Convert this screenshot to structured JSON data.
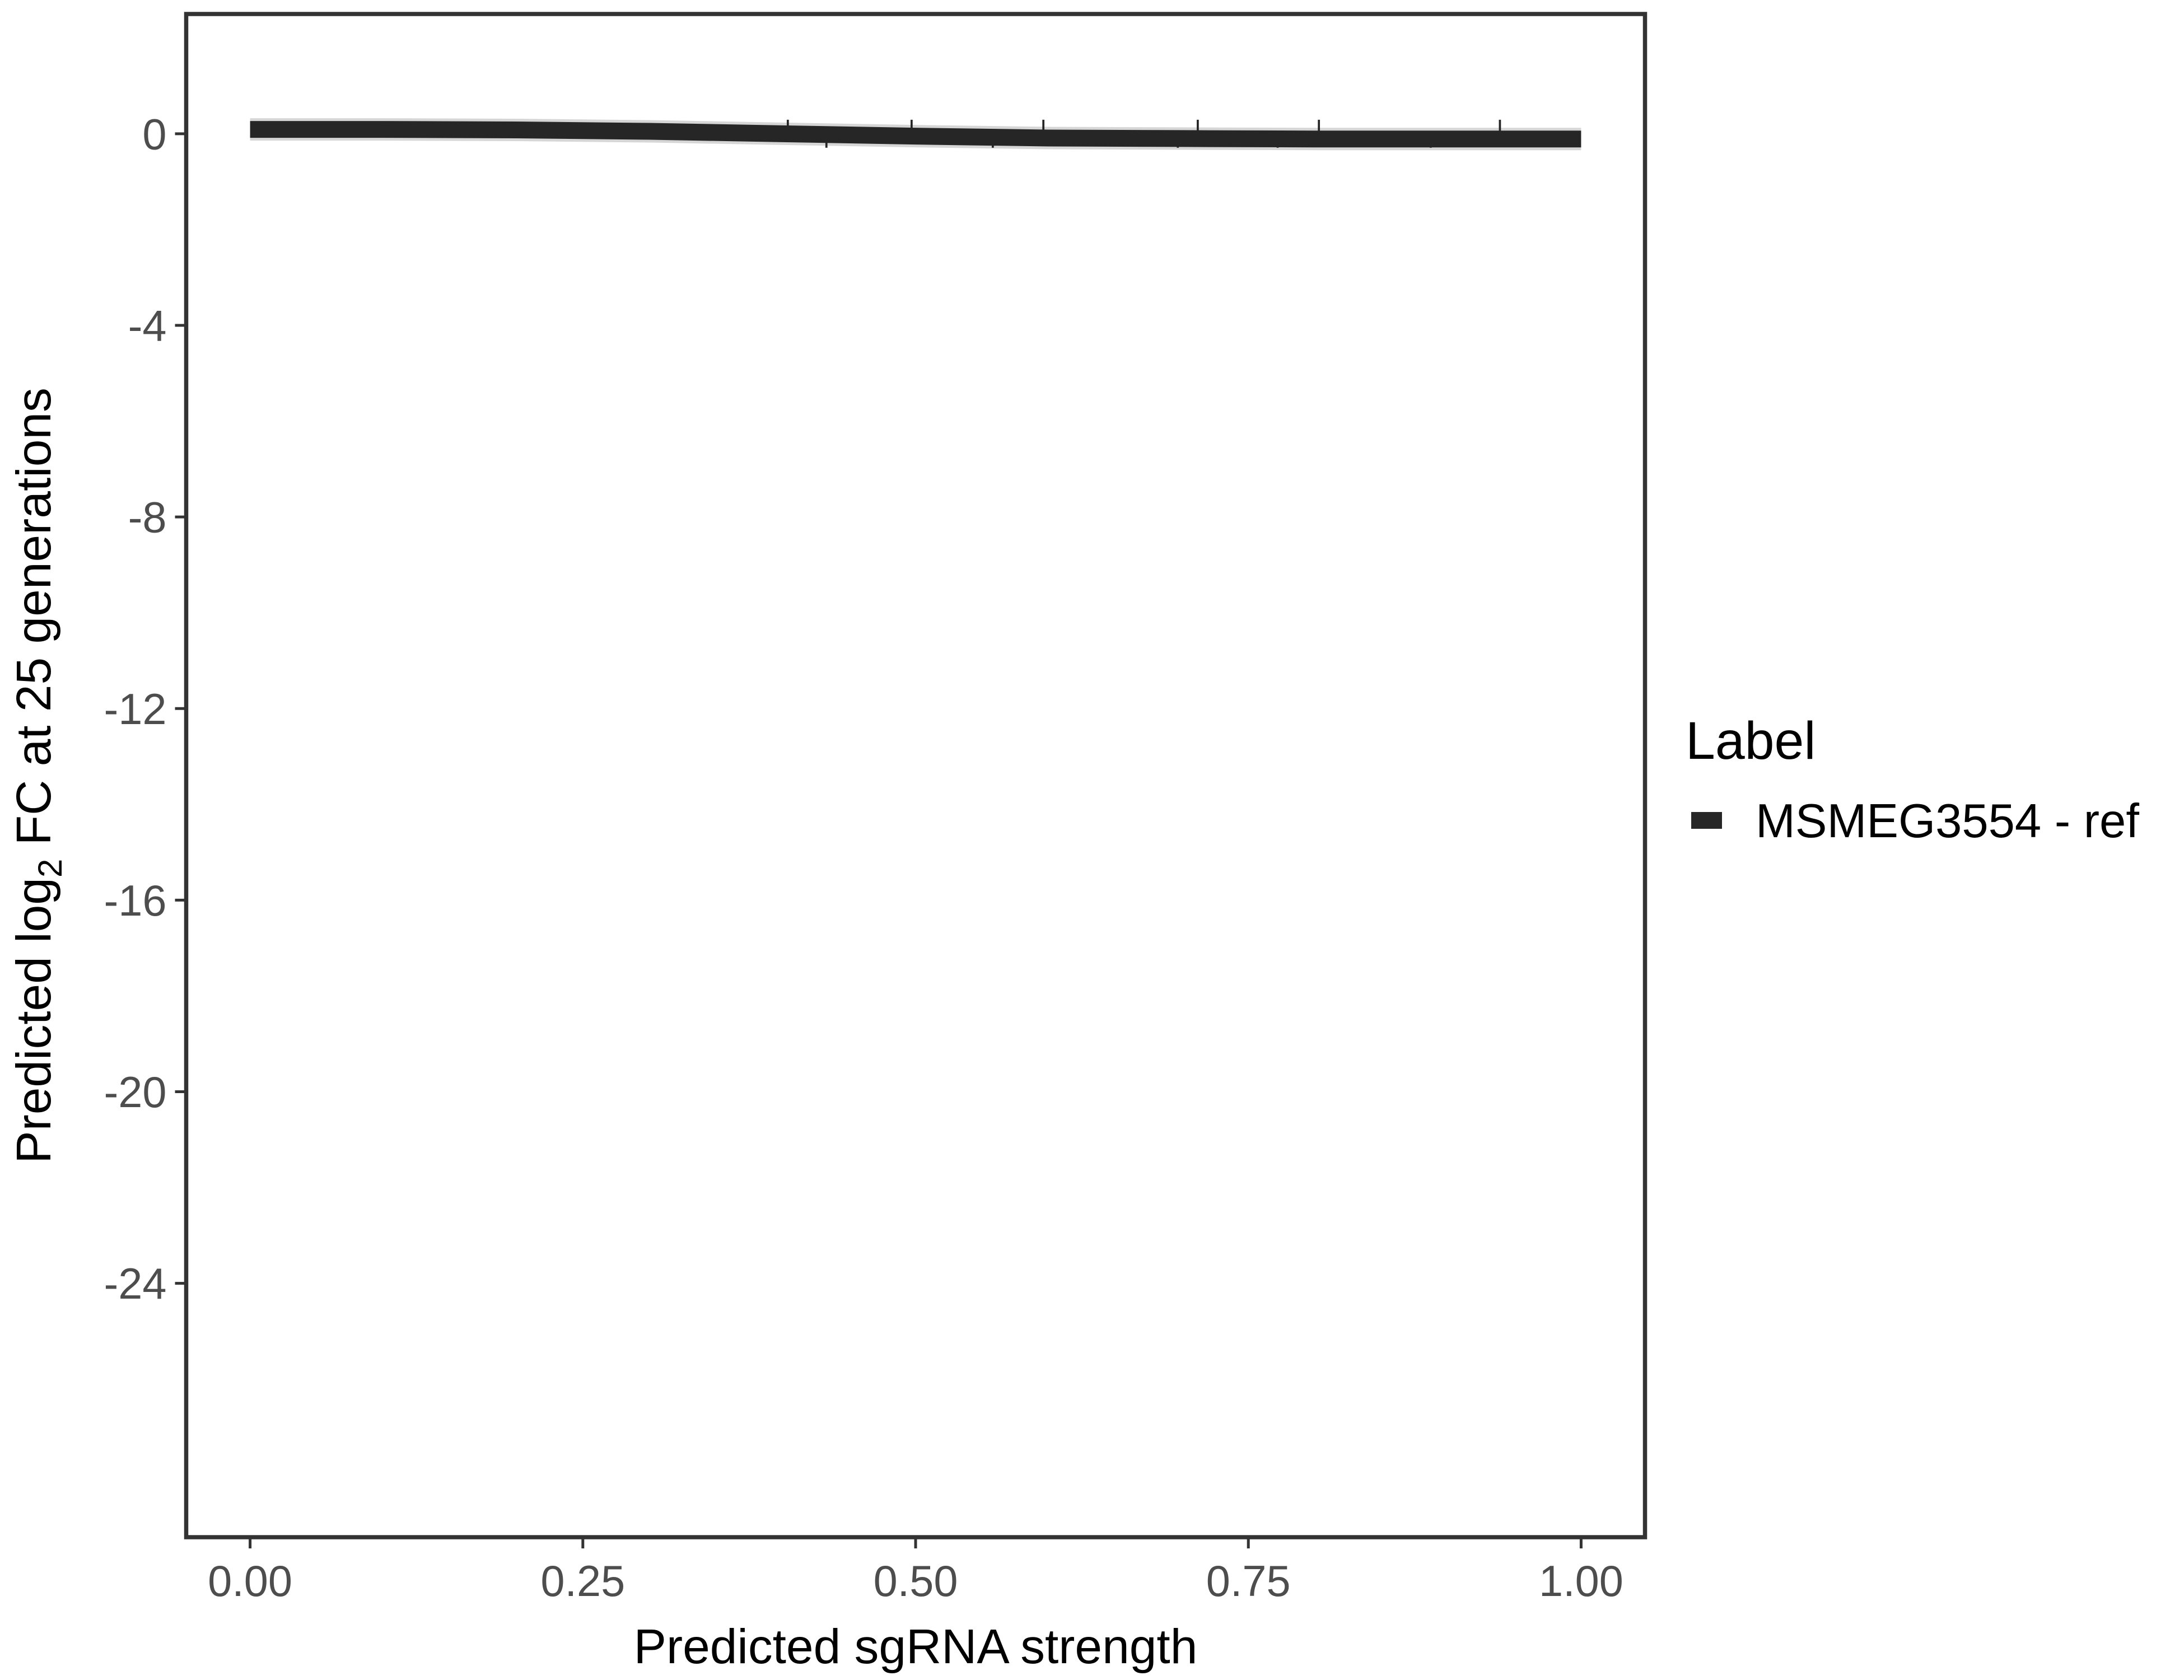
{
  "chart_data": {
    "type": "line",
    "title": "",
    "xlabel": "Predicted sgRNA strength",
    "ylabel_prefix": "Predicted  log",
    "ylabel_sub": "2",
    "ylabel_suffix": " FC at 25 generations",
    "xlim": [
      -0.048,
      1.048
    ],
    "ylim": [
      -29.3,
      2.5
    ],
    "xticks": [
      0,
      0.25,
      0.5,
      0.75,
      1
    ],
    "xtick_labels": [
      "0.00",
      "0.25",
      "0.50",
      "0.75",
      "1.00"
    ],
    "yticks": [
      0,
      -4,
      -8,
      -12,
      -16,
      -20,
      -24
    ],
    "ytick_labels": [
      "0",
      "-4",
      "-8",
      "-12",
      "-16",
      "-20",
      "-24"
    ],
    "grid": false,
    "legend": {
      "title": "Label",
      "placement": "right"
    },
    "series": [
      {
        "name": "MSMEG3554 - ref",
        "color": "#262626",
        "x": [
          0,
          0.1,
          0.2,
          0.3,
          0.4,
          0.5,
          0.6,
          0.7,
          0.8,
          0.9,
          1.0
        ],
        "y": [
          0.09,
          0.09,
          0.08,
          0.05,
          0.0,
          -0.05,
          -0.09,
          -0.1,
          -0.11,
          -0.11,
          -0.11
        ],
        "rug_x": [
          0.404,
          0.433,
          0.497,
          0.558,
          0.596,
          0.697,
          0.712,
          0.772,
          0.803,
          0.887,
          0.939
        ]
      }
    ]
  }
}
